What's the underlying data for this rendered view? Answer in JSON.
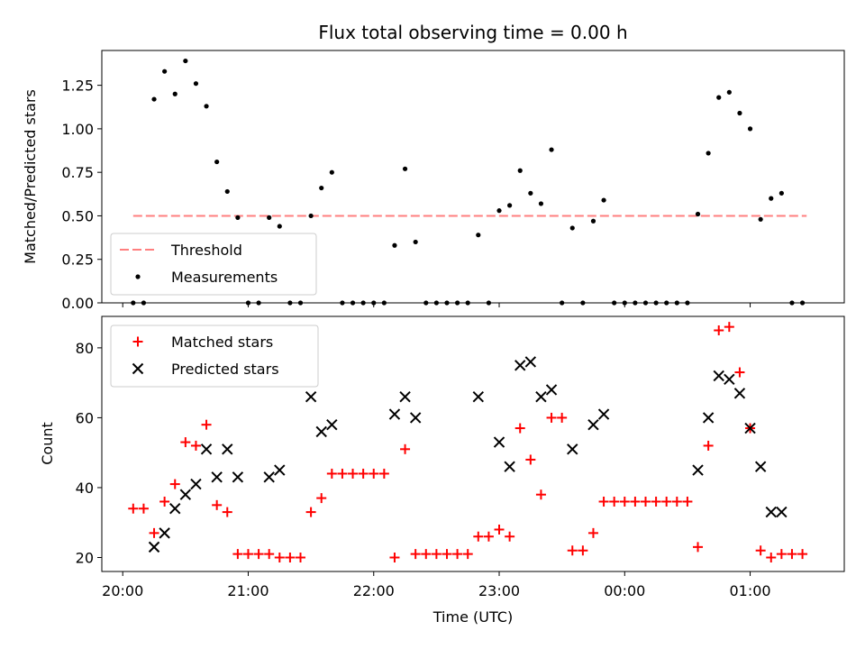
{
  "colors": {
    "threshold": "#ff7f7f",
    "measurements": "#000000",
    "matched": "#ff0000",
    "predicted": "#000000"
  },
  "chart_data": [
    {
      "type": "scatter",
      "title": "Flux total observing time = 0.00 h",
      "xlabel": "",
      "ylabel": "Matched/Predicted stars",
      "xlim": [
        "19:50",
        "01:45"
      ],
      "ylim": [
        0,
        1.45
      ],
      "yticks": [
        "0.00",
        "0.25",
        "0.50",
        "0.75",
        "1.00",
        "1.25"
      ],
      "grid": false,
      "legend_position": "lower-left",
      "threshold": {
        "name": "Threshold",
        "y": 0.5,
        "x_from": "20:05",
        "x_to": "01:27"
      },
      "series": [
        {
          "name": "Measurements",
          "points": [
            [
              "20:05",
              0.0
            ],
            [
              "20:10",
              0.0
            ],
            [
              "20:15",
              1.17
            ],
            [
              "20:20",
              1.33
            ],
            [
              "20:25",
              1.2
            ],
            [
              "20:30",
              1.39
            ],
            [
              "20:35",
              1.26
            ],
            [
              "20:40",
              1.13
            ],
            [
              "20:45",
              0.81
            ],
            [
              "20:50",
              0.64
            ],
            [
              "20:55",
              0.49
            ],
            [
              "21:00",
              0.0
            ],
            [
              "21:05",
              0.0
            ],
            [
              "21:10",
              0.49
            ],
            [
              "21:15",
              0.44
            ],
            [
              "21:20",
              0.0
            ],
            [
              "21:25",
              0.0
            ],
            [
              "21:30",
              0.5
            ],
            [
              "21:35",
              0.66
            ],
            [
              "21:40",
              0.75
            ],
            [
              "21:45",
              0.0
            ],
            [
              "21:50",
              0.0
            ],
            [
              "21:55",
              0.0
            ],
            [
              "22:00",
              0.0
            ],
            [
              "22:05",
              0.0
            ],
            [
              "22:10",
              0.33
            ],
            [
              "22:15",
              0.77
            ],
            [
              "22:20",
              0.35
            ],
            [
              "22:25",
              0.0
            ],
            [
              "22:30",
              0.0
            ],
            [
              "22:35",
              0.0
            ],
            [
              "22:40",
              0.0
            ],
            [
              "22:45",
              0.0
            ],
            [
              "22:50",
              0.39
            ],
            [
              "22:55",
              0.0
            ],
            [
              "23:00",
              0.53
            ],
            [
              "23:05",
              0.56
            ],
            [
              "23:10",
              0.76
            ],
            [
              "23:15",
              0.63
            ],
            [
              "23:20",
              0.57
            ],
            [
              "23:25",
              0.88
            ],
            [
              "23:30",
              0.0
            ],
            [
              "23:35",
              0.43
            ],
            [
              "23:40",
              0.0
            ],
            [
              "23:45",
              0.47
            ],
            [
              "23:50",
              0.59
            ],
            [
              "23:55",
              0.0
            ],
            [
              "00:00",
              0.0
            ],
            [
              "00:05",
              0.0
            ],
            [
              "00:10",
              0.0
            ],
            [
              "00:15",
              0.0
            ],
            [
              "00:20",
              0.0
            ],
            [
              "00:25",
              0.0
            ],
            [
              "00:30",
              0.0
            ],
            [
              "00:35",
              0.51
            ],
            [
              "00:40",
              0.86
            ],
            [
              "00:45",
              1.18
            ],
            [
              "00:50",
              1.21
            ],
            [
              "00:55",
              1.09
            ],
            [
              "01:00",
              1.0
            ],
            [
              "01:05",
              0.48
            ],
            [
              "01:10",
              0.6
            ],
            [
              "01:15",
              0.63
            ],
            [
              "01:20",
              0.0
            ],
            [
              "01:25",
              0.0
            ]
          ]
        }
      ]
    },
    {
      "type": "scatter",
      "title": "",
      "xlabel": "Time (UTC)",
      "ylabel": "Count",
      "xlim": [
        "19:50",
        "01:45"
      ],
      "ylim": [
        16,
        89
      ],
      "yticks": [
        "20",
        "40",
        "60",
        "80"
      ],
      "xticks": [
        "20:00",
        "21:00",
        "22:00",
        "23:00",
        "00:00",
        "01:00"
      ],
      "grid": false,
      "legend_position": "upper-left",
      "series": [
        {
          "name": "Matched stars",
          "marker": "plus",
          "points": [
            [
              "20:05",
              34
            ],
            [
              "20:10",
              34
            ],
            [
              "20:15",
              27
            ],
            [
              "20:20",
              36
            ],
            [
              "20:25",
              41
            ],
            [
              "20:30",
              53
            ],
            [
              "20:35",
              52
            ],
            [
              "20:40",
              58
            ],
            [
              "20:45",
              35
            ],
            [
              "20:50",
              33
            ],
            [
              "20:55",
              21
            ],
            [
              "21:00",
              21
            ],
            [
              "21:05",
              21
            ],
            [
              "21:10",
              21
            ],
            [
              "21:15",
              20
            ],
            [
              "21:20",
              20
            ],
            [
              "21:25",
              20
            ],
            [
              "21:30",
              33
            ],
            [
              "21:35",
              37
            ],
            [
              "21:40",
              44
            ],
            [
              "21:45",
              44
            ],
            [
              "21:50",
              44
            ],
            [
              "21:55",
              44
            ],
            [
              "22:00",
              44
            ],
            [
              "22:05",
              44
            ],
            [
              "22:10",
              20
            ],
            [
              "22:15",
              51
            ],
            [
              "22:20",
              21
            ],
            [
              "22:25",
              21
            ],
            [
              "22:30",
              21
            ],
            [
              "22:35",
              21
            ],
            [
              "22:40",
              21
            ],
            [
              "22:45",
              21
            ],
            [
              "22:50",
              26
            ],
            [
              "22:55",
              26
            ],
            [
              "23:00",
              28
            ],
            [
              "23:05",
              26
            ],
            [
              "23:10",
              57
            ],
            [
              "23:15",
              48
            ],
            [
              "23:20",
              38
            ],
            [
              "23:25",
              60
            ],
            [
              "23:30",
              60
            ],
            [
              "23:35",
              22
            ],
            [
              "23:40",
              22
            ],
            [
              "23:45",
              27
            ],
            [
              "23:50",
              36
            ],
            [
              "23:55",
              36
            ],
            [
              "00:00",
              36
            ],
            [
              "00:05",
              36
            ],
            [
              "00:10",
              36
            ],
            [
              "00:15",
              36
            ],
            [
              "00:20",
              36
            ],
            [
              "00:25",
              36
            ],
            [
              "00:30",
              36
            ],
            [
              "00:35",
              23
            ],
            [
              "00:40",
              52
            ],
            [
              "00:45",
              85
            ],
            [
              "00:50",
              86
            ],
            [
              "00:55",
              73
            ],
            [
              "01:00",
              57
            ],
            [
              "01:05",
              22
            ],
            [
              "01:10",
              20
            ],
            [
              "01:15",
              21
            ],
            [
              "01:20",
              21
            ],
            [
              "01:25",
              21
            ]
          ]
        },
        {
          "name": "Predicted stars",
          "marker": "x",
          "points": [
            [
              "20:15",
              23
            ],
            [
              "20:20",
              27
            ],
            [
              "20:25",
              34
            ],
            [
              "20:30",
              38
            ],
            [
              "20:35",
              41
            ],
            [
              "20:40",
              51
            ],
            [
              "20:45",
              43
            ],
            [
              "20:50",
              51
            ],
            [
              "20:55",
              43
            ],
            [
              "21:10",
              43
            ],
            [
              "21:15",
              45
            ],
            [
              "21:30",
              66
            ],
            [
              "21:35",
              56
            ],
            [
              "21:40",
              58
            ],
            [
              "22:10",
              61
            ],
            [
              "22:15",
              66
            ],
            [
              "22:20",
              60
            ],
            [
              "22:50",
              66
            ],
            [
              "23:00",
              53
            ],
            [
              "23:05",
              46
            ],
            [
              "23:10",
              75
            ],
            [
              "23:15",
              76
            ],
            [
              "23:20",
              66
            ],
            [
              "23:25",
              68
            ],
            [
              "23:35",
              51
            ],
            [
              "23:45",
              58
            ],
            [
              "23:50",
              61
            ],
            [
              "00:35",
              45
            ],
            [
              "00:40",
              60
            ],
            [
              "00:45",
              72
            ],
            [
              "00:50",
              71
            ],
            [
              "00:55",
              67
            ],
            [
              "01:00",
              57
            ],
            [
              "01:05",
              46
            ],
            [
              "01:10",
              33
            ],
            [
              "01:15",
              33
            ]
          ]
        }
      ]
    }
  ]
}
